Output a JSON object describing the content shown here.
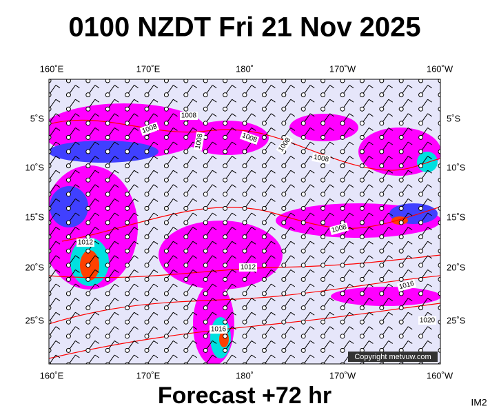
{
  "header": {
    "title": "0100 NZDT Fri 21 Nov 2025"
  },
  "axes": {
    "top_labels": [
      "160˚E",
      "170˚E",
      "180˚",
      "170˚W",
      "160˚W"
    ],
    "bottom_labels": [
      "160˚E",
      "170˚E",
      "180˚",
      "170˚W",
      "160˚W"
    ],
    "left_labels": [
      "5˚S",
      "10˚S",
      "15˚S",
      "20˚S",
      "25˚S"
    ],
    "right_labels": [
      "5˚S",
      "10˚S",
      "15˚S",
      "20˚S",
      "25˚S"
    ]
  },
  "isobar_labels": [
    "1008",
    "1008",
    "1008",
    "1008",
    "1008",
    "1008",
    "1008",
    "1012",
    "1012",
    "1016",
    "1020",
    "1016"
  ],
  "copyright": "Copyright metvuw.com",
  "footer": {
    "forecast": "Forecast +72 hr",
    "code": "IM2"
  }
}
